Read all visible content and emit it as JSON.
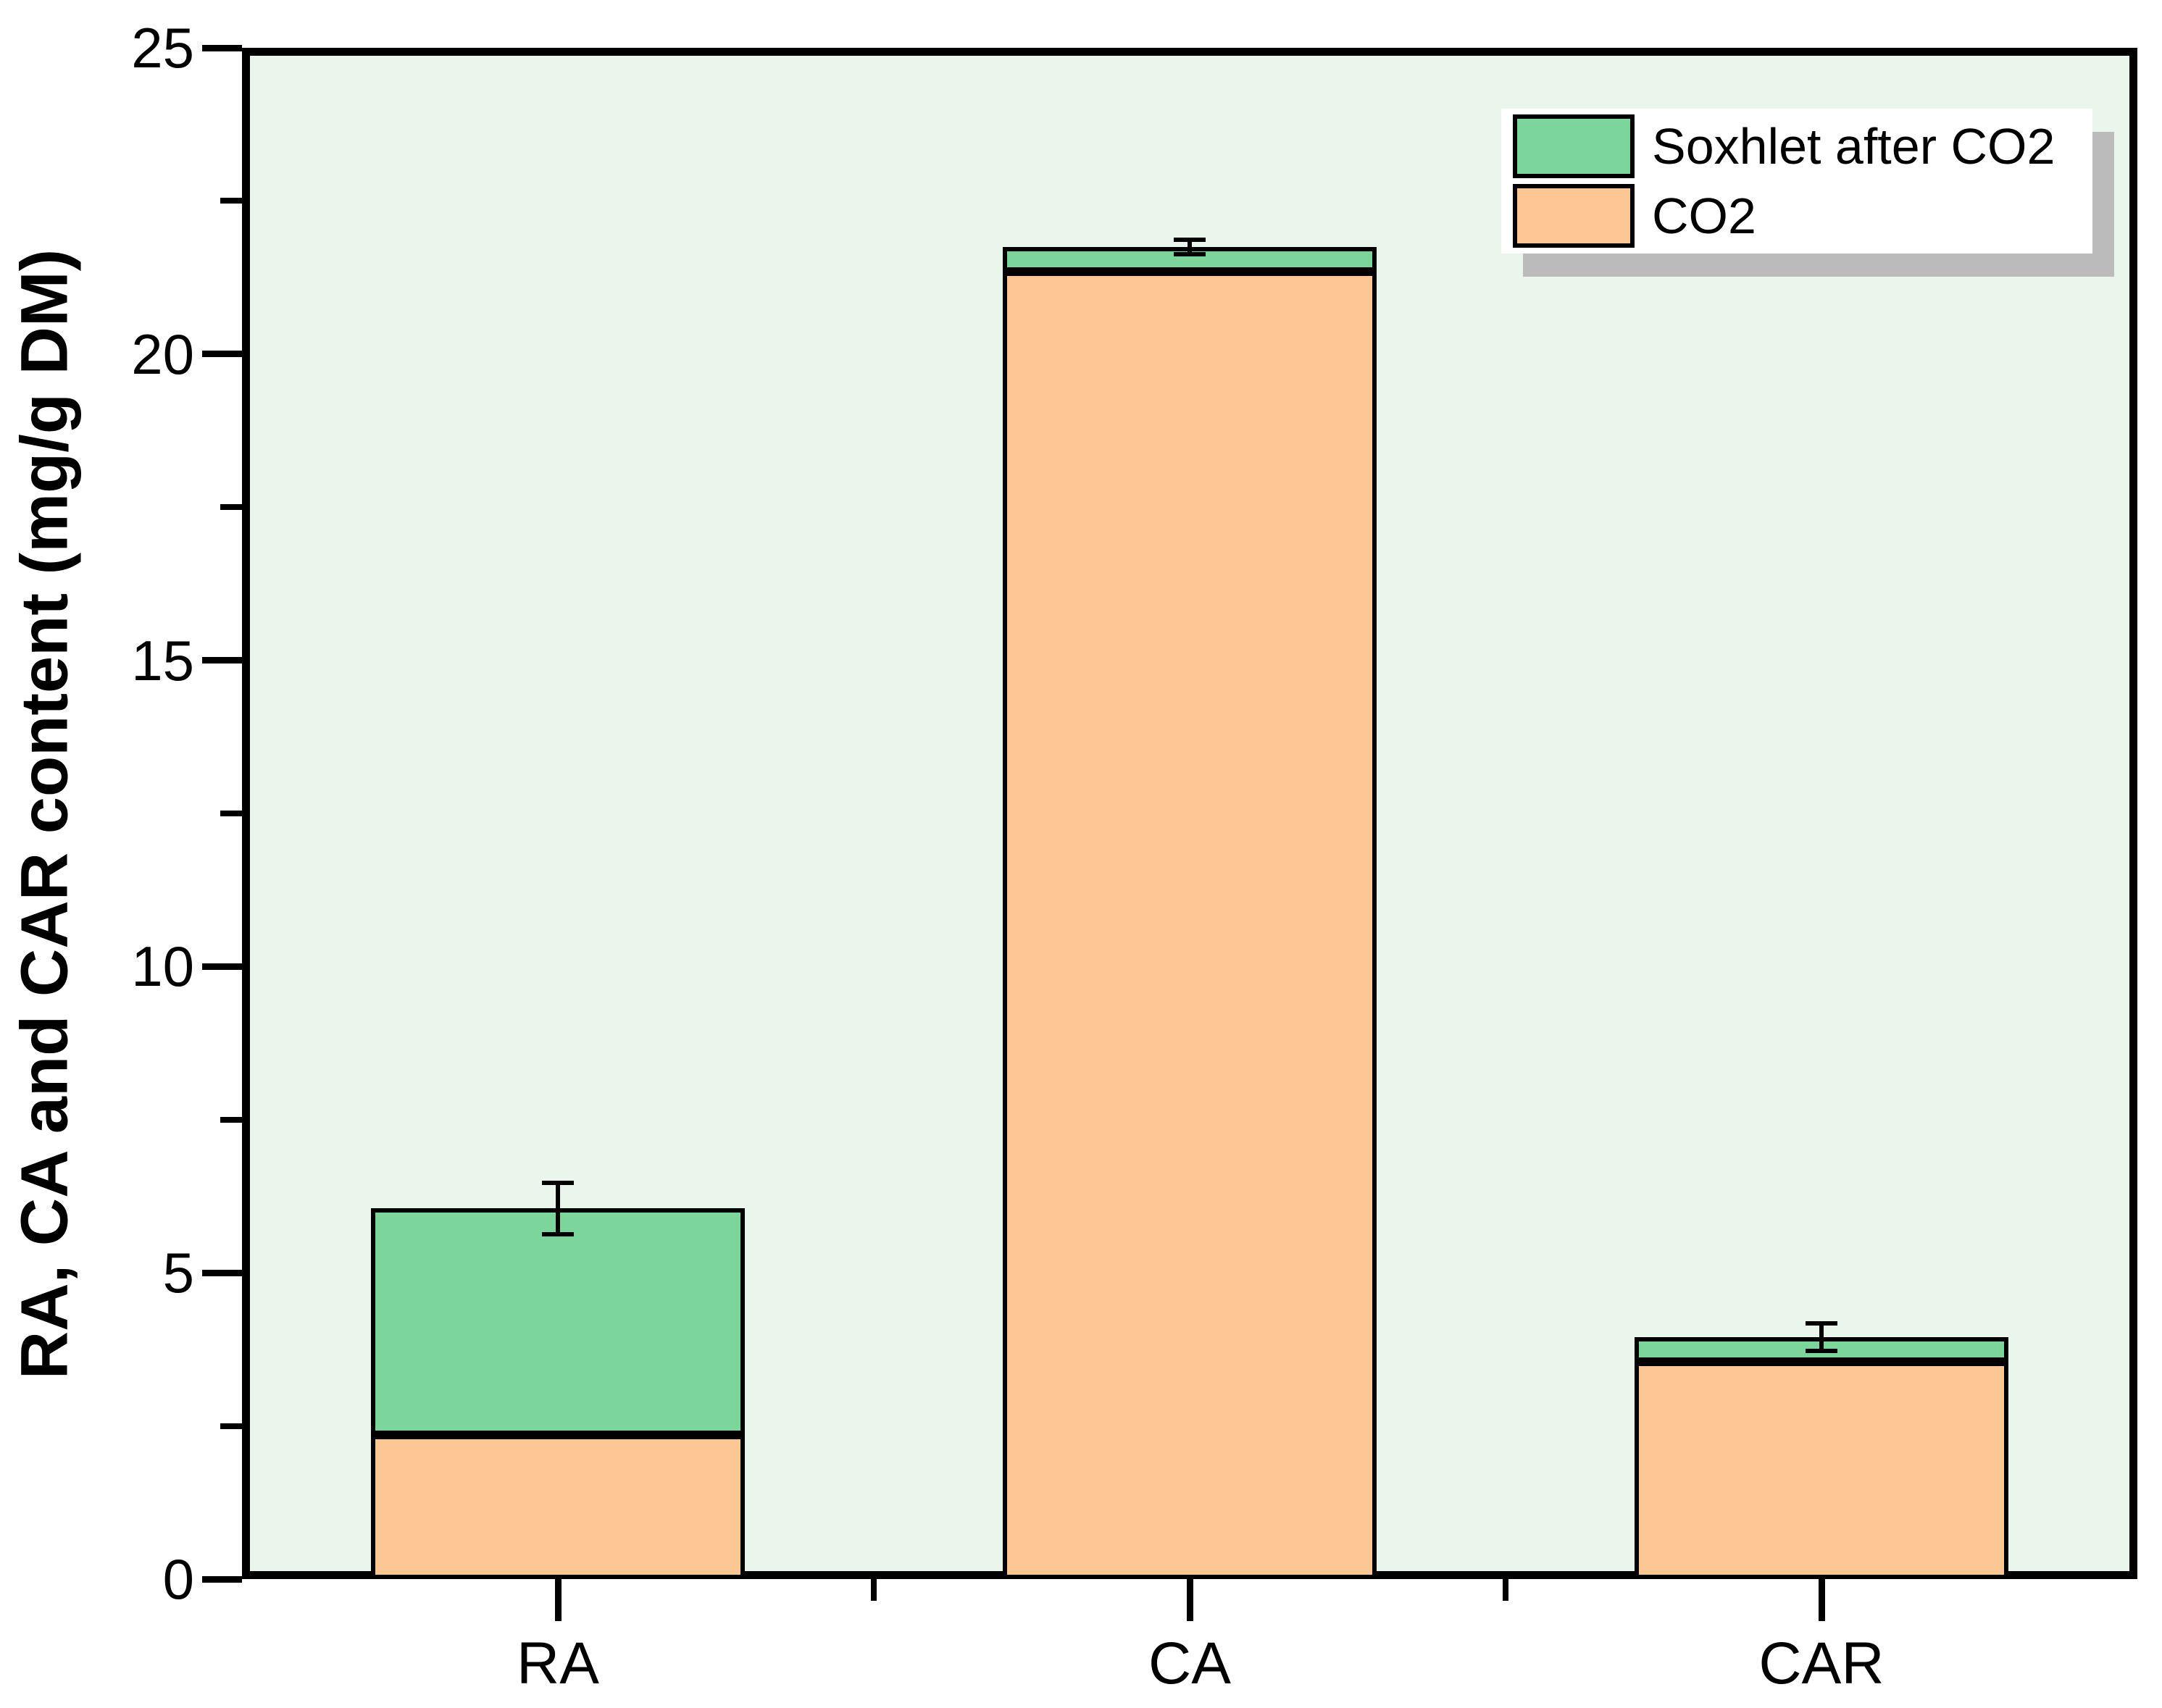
{
  "chart_data": {
    "type": "bar",
    "stacked": true,
    "title": "",
    "xlabel": "",
    "ylabel": "RA, CA and CAR content (mg/g DM)",
    "categories": [
      "RA",
      "CA",
      "CAR"
    ],
    "series": [
      {
        "name": "CO2",
        "color": "#FCC795",
        "values": [
          2.35,
          21.35,
          3.55
        ]
      },
      {
        "name": "Soxhlet after CO2",
        "color": "#7CD69C",
        "values": [
          3.7,
          0.4,
          0.4
        ]
      }
    ],
    "stack_totals": [
      6.05,
      21.75,
      3.95
    ],
    "error_bars": {
      "applies_to": "stack_total",
      "plus_minus": [
        0.42,
        0.12,
        0.22
      ]
    },
    "ylim": [
      0,
      25
    ],
    "yticks_major": [
      0,
      5,
      10,
      15,
      20,
      25
    ],
    "yticks_minor": [
      2.5,
      7.5,
      12.5,
      17.5,
      22.5
    ],
    "grid": "off",
    "legend_position": "top-right-inside",
    "legend_items": [
      {
        "label": "Soxhlet after CO2",
        "color": "#7CD69C"
      },
      {
        "label": "CO2",
        "color": "#FCC795"
      }
    ],
    "colors": {
      "plot_background": "#EAF6EC",
      "axis": "#000000",
      "soxhlet_green": "#7CD69C",
      "co2_orange": "#FCC795",
      "legend_background": "#FFFFFF",
      "legend_shadow": "#BBBBBB"
    }
  }
}
